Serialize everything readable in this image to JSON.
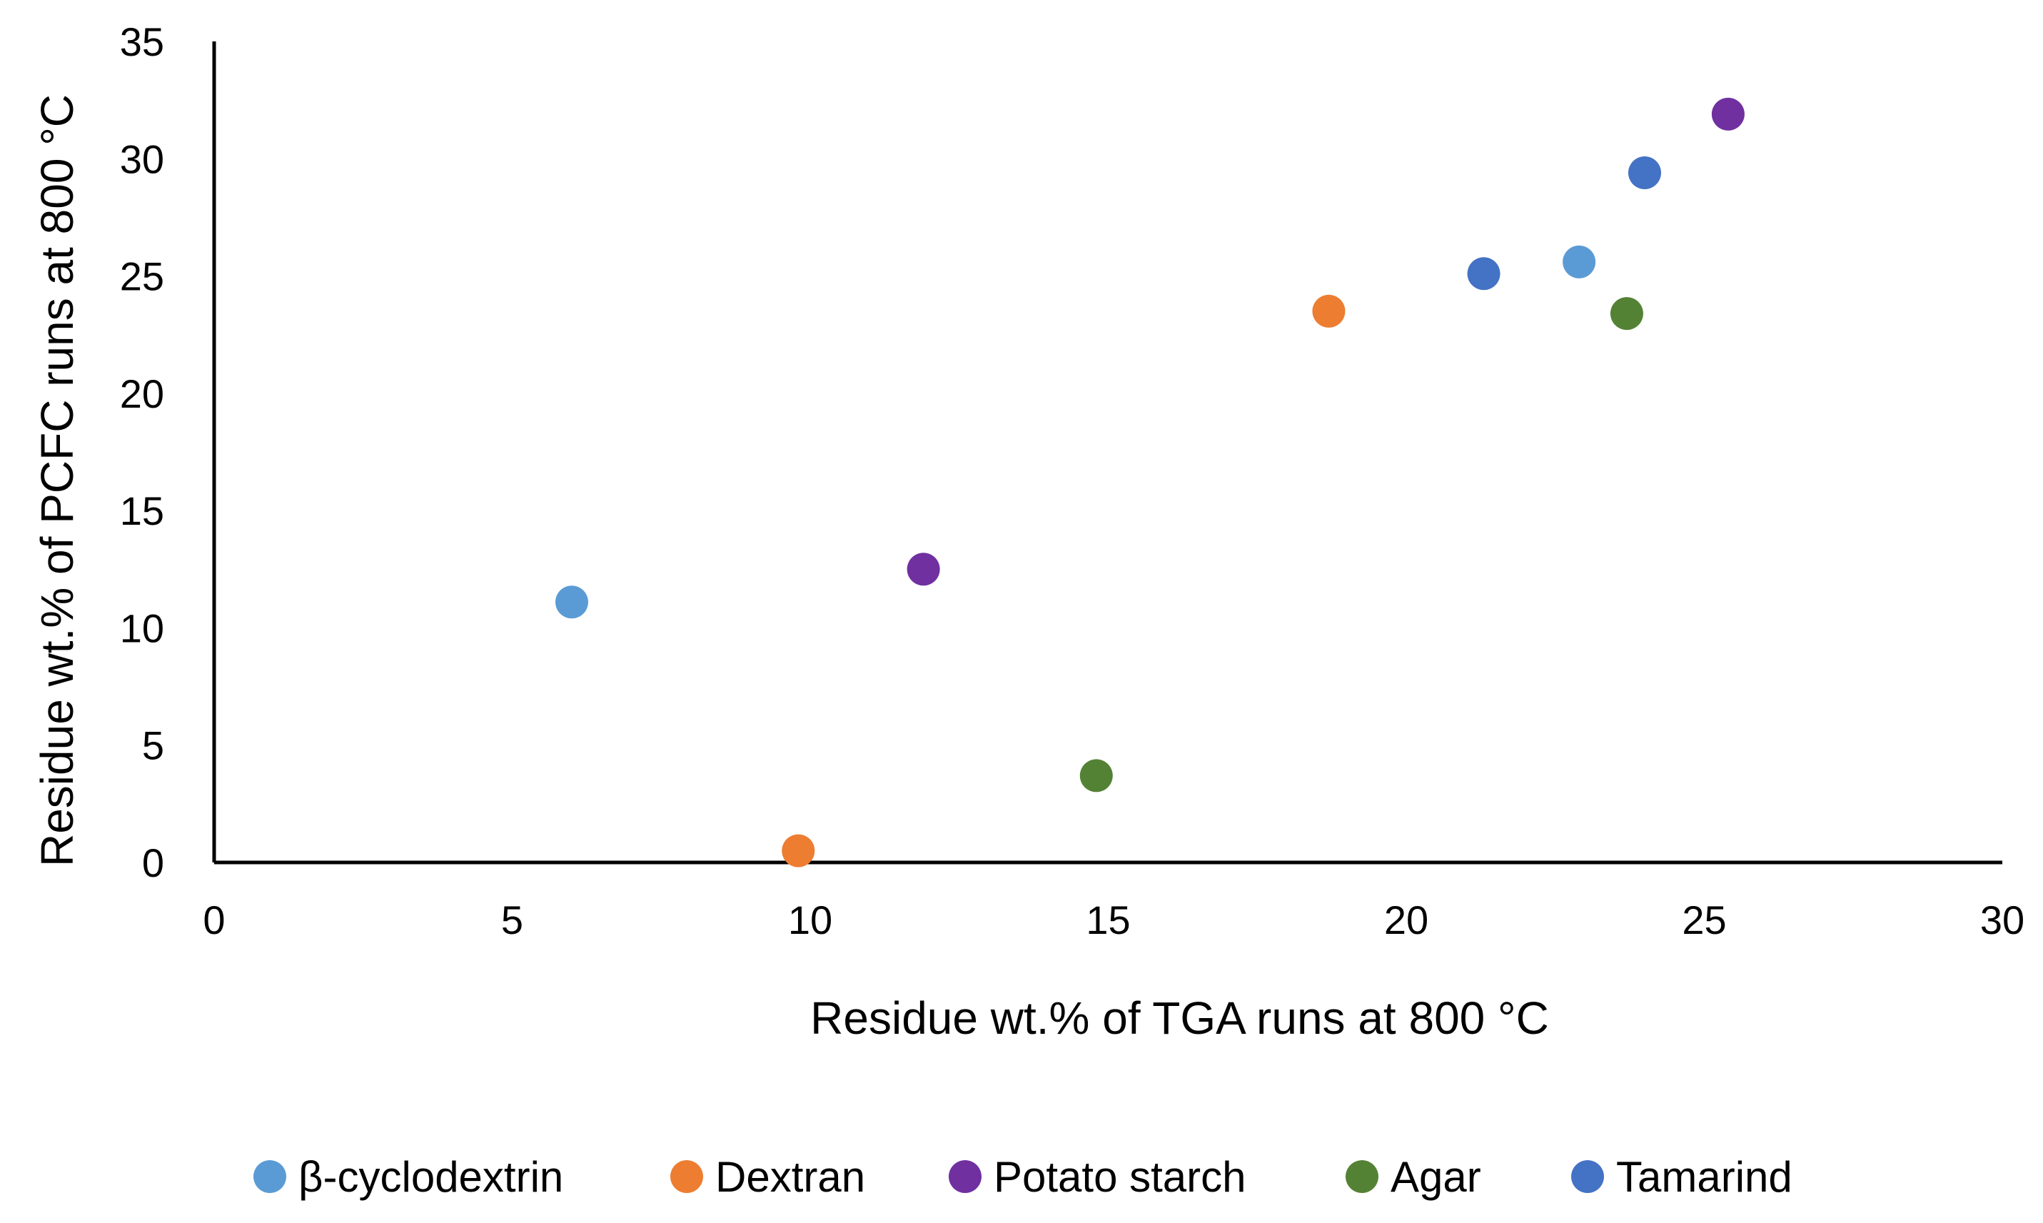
{
  "chart_data": {
    "type": "scatter",
    "title": "",
    "xlabel": "Residue wt.% of TGA runs at 800 °C",
    "ylabel": "Residue wt.% of PCFC runs at 800 °C",
    "xlim": [
      0,
      30
    ],
    "ylim": [
      0,
      35
    ],
    "x_ticks": [
      "0",
      "5",
      "10",
      "15",
      "20",
      "25",
      "30"
    ],
    "y_ticks": [
      "0",
      "5",
      "10",
      "15",
      "20",
      "25",
      "30",
      "35"
    ],
    "grid": false,
    "legend_position": "bottom",
    "series": [
      {
        "name": "β-cyclodextrin",
        "color": "#5B9BD5",
        "points": [
          {
            "x": 6.0,
            "y": 11.1
          },
          {
            "x": 22.9,
            "y": 25.6
          }
        ]
      },
      {
        "name": "Dextran",
        "color": "#ED7D31",
        "points": [
          {
            "x": 9.8,
            "y": 0.5
          },
          {
            "x": 18.7,
            "y": 23.5
          }
        ]
      },
      {
        "name": "Potato starch",
        "color": "#7030A0",
        "points": [
          {
            "x": 11.9,
            "y": 12.5
          },
          {
            "x": 25.4,
            "y": 31.9
          }
        ]
      },
      {
        "name": "Agar",
        "color": "#548235",
        "points": [
          {
            "x": 14.8,
            "y": 3.7
          },
          {
            "x": 23.7,
            "y": 23.4
          }
        ]
      },
      {
        "name": "Tamarind",
        "color": "#4472C4",
        "points": [
          {
            "x": 21.3,
            "y": 25.1
          },
          {
            "x": 24.0,
            "y": 29.4
          }
        ]
      }
    ]
  }
}
